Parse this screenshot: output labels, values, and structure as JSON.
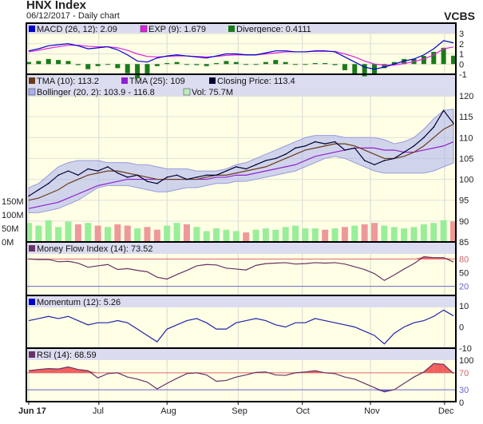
{
  "header": {
    "title": "HNX Index",
    "subtitle": "06/12/2017 - Daily chart",
    "brand": "VCBS"
  },
  "colors": {
    "plot_bg": "#ffffe6",
    "header_bg": "#dcdcf0",
    "macd": "#0000cc",
    "exp": "#e020e0",
    "divergence": "#1a7a1a",
    "tma10": "#6b3a1a",
    "tma25": "#9020d0",
    "close": "#000033",
    "bollinger": "#9999dd",
    "vol_up": "#99ee99",
    "vol_down": "#ee9999",
    "upper_line": "#dd6666",
    "lower_line": "#6666cc",
    "mfi": "#663366",
    "momentum": "#2222aa"
  },
  "chart_data": {
    "type": "line",
    "x_ticks": [
      {
        "label": "Jun 17",
        "index": 0
      },
      {
        "label": "Jul",
        "index": 7.1
      },
      {
        "label": "Aug",
        "index": 14
      },
      {
        "label": "Sep",
        "index": 21.2
      },
      {
        "label": "Oct",
        "index": 27.7
      },
      {
        "label": "Nov",
        "index": 34.6
      },
      {
        "label": "Dec",
        "index": 42.1
      }
    ],
    "panels": {
      "macd": {
        "legend": [
          "MACD (26, 12): 2.09",
          "EXP (9): 1.679",
          "Divergence: 0.4111"
        ],
        "ylim": [
          -1,
          3
        ],
        "y_ticks": [
          "3",
          "2",
          "1",
          "0",
          "-1"
        ],
        "macd": [
          1.3,
          1.5,
          1.8,
          1.9,
          2.0,
          1.8,
          1.5,
          1.6,
          1.7,
          1.4,
          0.9,
          0.3,
          0.2,
          0.6,
          0.8,
          0.9,
          0.8,
          0.7,
          0.6,
          0.8,
          1.0,
          1.0,
          0.9,
          0.9,
          1.1,
          1.3,
          1.3,
          1.2,
          1.2,
          1.3,
          1.3,
          1.2,
          0.7,
          0.2,
          -0.3,
          -0.5,
          -0.3,
          0.0,
          0.3,
          0.5,
          0.9,
          1.5,
          2.3,
          2.09
        ],
        "exp": [
          1.2,
          1.35,
          1.55,
          1.7,
          1.85,
          1.85,
          1.75,
          1.7,
          1.7,
          1.6,
          1.35,
          1.0,
          0.75,
          0.7,
          0.75,
          0.8,
          0.8,
          0.75,
          0.7,
          0.75,
          0.85,
          0.9,
          0.9,
          0.9,
          1.0,
          1.1,
          1.2,
          1.2,
          1.2,
          1.25,
          1.25,
          1.25,
          1.0,
          0.7,
          0.3,
          0.0,
          -0.1,
          -0.1,
          0.05,
          0.25,
          0.5,
          0.9,
          1.5,
          1.679
        ]
      },
      "price": {
        "legend": [
          "TMA (10): 113.2",
          "TMA (25): 109",
          "Closing Price: 113.4",
          "Bollinger (20, 2): 103.9 - 116.8",
          "Vol: 75.7M"
        ],
        "ylim": [
          85,
          120
        ],
        "y_ticks": [
          "120",
          "115",
          "110",
          "105",
          "100",
          "95",
          "90",
          "85"
        ],
        "vol_ticks": [
          "150M",
          "100M",
          "50M",
          "0M"
        ],
        "vol_lim": [
          0,
          150
        ],
        "close": [
          96,
          97.5,
          99,
          101,
          102,
          101,
          102.5,
          102,
          103,
          101.5,
          100.5,
          101,
          99.5,
          99,
          100.5,
          101,
          100,
          100.5,
          101,
          101,
          102,
          103,
          102.5,
          103.5,
          104.5,
          105,
          106,
          107.5,
          108,
          109,
          108.5,
          109,
          107,
          107.5,
          104.5,
          103.5,
          104.5,
          105,
          106.5,
          108,
          110,
          112.5,
          116.5,
          113.4
        ],
        "tma10": [
          95,
          95.5,
          96.5,
          97.5,
          99,
          100,
          101,
          101.5,
          102,
          102,
          101.5,
          101,
          100.5,
          100,
          100,
          100,
          100,
          100,
          100.5,
          101,
          101,
          101.5,
          102,
          102.5,
          103,
          104,
          105,
          106,
          107,
          107.5,
          108,
          108.5,
          108.5,
          108,
          107,
          106,
          105,
          105,
          105.5,
          106.5,
          108,
          110,
          112,
          113.2
        ],
        "tma25": [
          93,
          93.5,
          94,
          94.5,
          95.5,
          96.5,
          97.5,
          98.5,
          99,
          99.5,
          100,
          100,
          100,
          100,
          100,
          100,
          100,
          100,
          100,
          100.5,
          100.5,
          101,
          101,
          101.5,
          102,
          102.5,
          103,
          103.5,
          104.5,
          105.5,
          106,
          106.5,
          107,
          107.5,
          107.5,
          107.5,
          107,
          107,
          106.5,
          106.5,
          107,
          107.5,
          108,
          109
        ],
        "boll_upper": [
          98,
          99,
          101,
          103,
          104,
          104.5,
          104.5,
          104.5,
          104,
          104,
          104,
          103.5,
          103.5,
          103,
          102.5,
          102.5,
          102.5,
          102,
          102,
          102,
          102.5,
          103.5,
          104,
          105,
          106,
          107,
          108,
          109,
          110,
          110.5,
          110.5,
          110.5,
          110,
          110,
          110,
          110,
          109.5,
          108.5,
          109,
          110,
          112,
          114.5,
          116.5,
          116.8
        ],
        "boll_lower": [
          92,
          92,
          92.5,
          93,
          94,
          95,
          96.5,
          98,
          98.5,
          98.5,
          98.5,
          98,
          97.5,
          97,
          97,
          97.5,
          98,
          98,
          98.5,
          99,
          99,
          99.5,
          99.5,
          100,
          100.5,
          101,
          101.5,
          102,
          103,
          104,
          105,
          105.5,
          105,
          104,
          103,
          102,
          101.5,
          101.5,
          101.5,
          101.5,
          101.5,
          102,
          103,
          103.9
        ],
        "volume_m": [
          70,
          60,
          80,
          55,
          75,
          65,
          70,
          60,
          55,
          65,
          60,
          50,
          55,
          45,
          60,
          70,
          65,
          55,
          40,
          50,
          45,
          40,
          35,
          45,
          50,
          45,
          55,
          60,
          50,
          50,
          45,
          50,
          55,
          60,
          65,
          70,
          60,
          55,
          50,
          55,
          65,
          70,
          80,
          75.7
        ]
      },
      "mfi": {
        "legend": [
          "Money Flow Index (14): 73.52"
        ],
        "ylim": [
          0,
          100
        ],
        "y_ticks": [
          "80",
          "50",
          "20"
        ],
        "levels": [
          80,
          20
        ],
        "values": [
          80,
          79,
          79,
          74,
          75,
          71,
          62,
          65,
          68,
          57,
          59,
          55,
          52,
          40,
          36,
          46,
          55,
          65,
          68,
          67,
          60,
          58,
          56,
          66,
          70,
          71,
          72,
          69,
          70,
          72,
          71,
          72,
          69,
          63,
          57,
          48,
          33,
          45,
          58,
          70,
          85,
          83,
          83,
          73.52
        ]
      },
      "momentum": {
        "legend": [
          "Momentum (12): 5.26"
        ],
        "ylim": [
          -10,
          10
        ],
        "y_ticks": [
          "10",
          "0",
          "-10"
        ],
        "values": [
          3,
          4,
          5,
          4,
          5,
          3,
          1,
          2,
          2,
          3,
          2,
          -1,
          -4,
          -7,
          -1,
          1,
          3,
          4,
          2,
          -1,
          -1,
          2,
          3,
          4,
          3,
          1,
          0,
          2,
          2,
          4,
          3,
          2,
          1,
          0,
          -2,
          -4,
          -8,
          -3,
          0,
          2,
          3,
          5,
          8,
          5.26
        ]
      },
      "rsi": {
        "legend": [
          "RSI (14): 68.59"
        ],
        "ylim": [
          0,
          100
        ],
        "y_ticks": [
          "100",
          "70",
          "30",
          "0"
        ],
        "levels": [
          70,
          30
        ],
        "values": [
          75,
          78,
          80,
          79,
          84,
          78,
          75,
          58,
          68,
          70,
          60,
          55,
          48,
          32,
          45,
          57,
          68,
          70,
          65,
          50,
          52,
          60,
          65,
          71,
          72,
          65,
          64,
          70,
          72,
          75,
          70,
          68,
          60,
          55,
          45,
          35,
          25,
          30,
          45,
          60,
          72,
          92,
          90,
          68.59
        ]
      }
    }
  }
}
